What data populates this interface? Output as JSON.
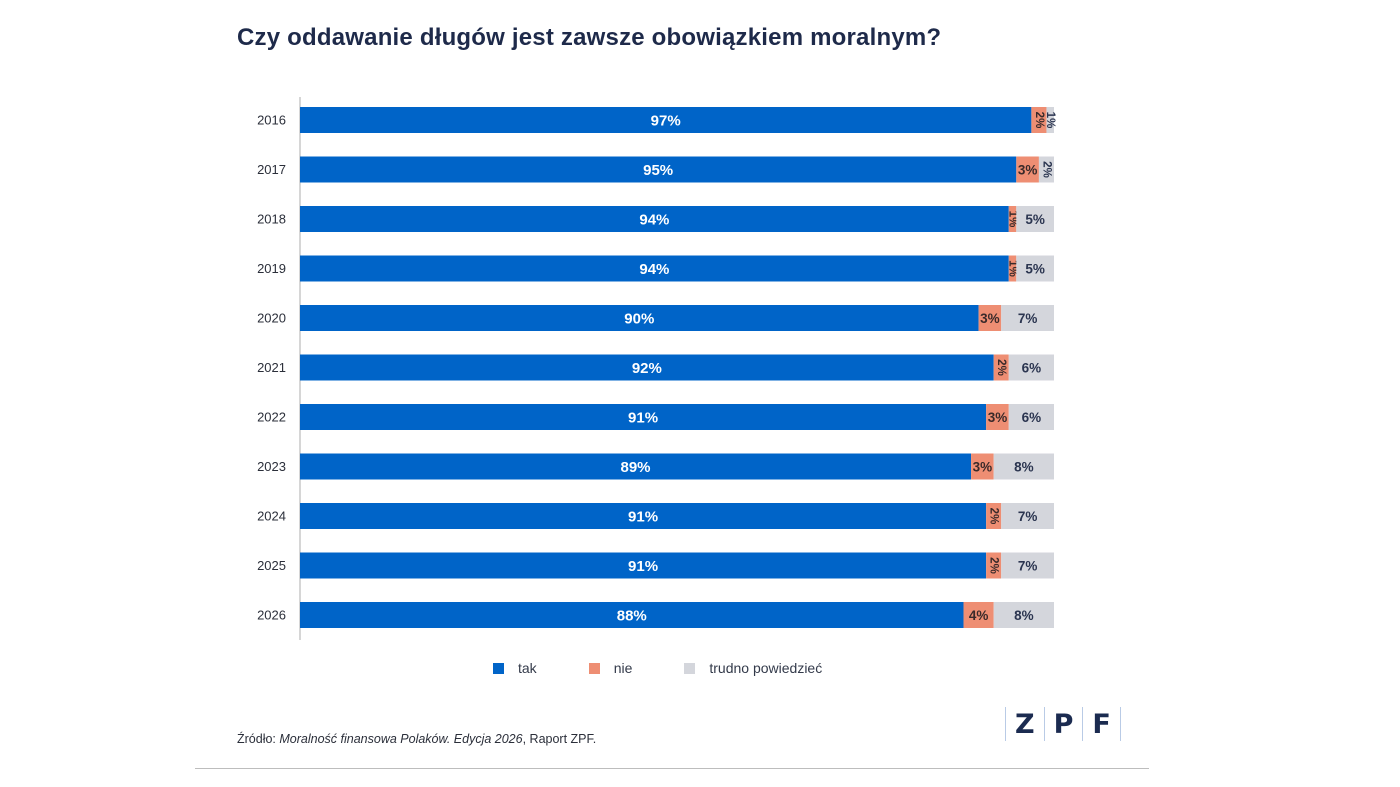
{
  "title": "Czy oddawanie długów jest zawsze obowiązkiem moralnym?",
  "chart_data": {
    "type": "bar",
    "orientation": "horizontal",
    "stacked": true,
    "categories": [
      "2016",
      "2017",
      "2018",
      "2019",
      "2020",
      "2021",
      "2022",
      "2023",
      "2024",
      "2025",
      "2026"
    ],
    "series": [
      {
        "name": "tak",
        "color": "#0064c8",
        "values": [
          97,
          95,
          94,
          94,
          90,
          92,
          91,
          89,
          91,
          91,
          88
        ]
      },
      {
        "name": "nie",
        "color": "#ee8e73",
        "values": [
          2,
          3,
          1,
          1,
          3,
          2,
          3,
          3,
          2,
          2,
          4
        ]
      },
      {
        "name": "trudno powiedzieć",
        "color": "#d4d6dc",
        "values": [
          1,
          2,
          5,
          5,
          7,
          6,
          6,
          8,
          7,
          7,
          8
        ]
      }
    ],
    "labels": {
      "tak": [
        "97%",
        "95%",
        "94%",
        "94%",
        "90%",
        "92%",
        "91%",
        "89%",
        "91%",
        "91%",
        "88%"
      ],
      "nie": [
        "2%",
        "3%",
        "1%",
        "1%",
        "3%",
        "2%",
        "3%",
        "3%",
        "2%",
        "2%",
        "4%"
      ],
      "trudno powiedzieć": [
        "1%",
        "2%",
        "5%",
        "5%",
        "7%",
        "6%",
        "6%",
        "8%",
        "7%",
        "7%",
        "8%"
      ]
    },
    "xlim": [
      0,
      100
    ],
    "legend_position": "bottom"
  },
  "legend": {
    "tak": "tak",
    "nie": "nie",
    "trudno": "trudno powiedzieć"
  },
  "source": {
    "prefix": "Źródło: ",
    "italic": "Moralność finansowa Polaków. Edycja 2026",
    "suffix": ", Raport ZPF."
  },
  "logo": [
    "Z",
    "P",
    "F"
  ]
}
